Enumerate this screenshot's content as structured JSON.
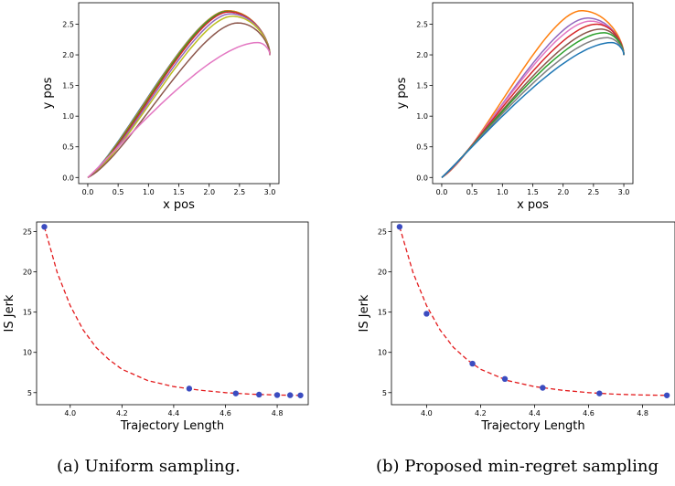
{
  "captions": {
    "a": "(a) Uniform sampling.",
    "b": "(b) Proposed min-regret sampling"
  },
  "chart_data": [
    {
      "type": "line",
      "xlabel": "x pos",
      "ylabel": "y pos",
      "xlim": [
        -0.15,
        3.15
      ],
      "ylim": [
        -0.1,
        2.85
      ],
      "xticks": [
        0.0,
        0.5,
        1.0,
        1.5,
        2.0,
        2.5,
        3.0
      ],
      "yticks": [
        0.0,
        0.5,
        1.0,
        1.5,
        2.0,
        2.5
      ],
      "x_tick_labels": [
        "0.0",
        "0.5",
        "1.0",
        "1.5",
        "2.0",
        "2.5",
        "3.0"
      ],
      "y_tick_labels": [
        "0.0",
        "0.5",
        "1.0",
        "1.5",
        "2.0",
        "2.5"
      ],
      "series": [
        {
          "color": "#1f77b4",
          "values": [
            [
              0,
              0
            ],
            [
              0.55,
              0.4
            ],
            [
              2.3,
              2.72
            ],
            [
              3.0,
              2.0
            ]
          ]
        },
        {
          "color": "#ff7f0e",
          "values": [
            [
              0,
              0
            ],
            [
              0.56,
              0.38
            ],
            [
              2.3,
              2.72
            ],
            [
              3.0,
              2.0
            ]
          ]
        },
        {
          "color": "#2ca02c",
          "values": [
            [
              0,
              0
            ],
            [
              0.57,
              0.36
            ],
            [
              2.3,
              2.71
            ],
            [
              3.0,
              2.0
            ]
          ]
        },
        {
          "color": "#d62728",
          "values": [
            [
              0,
              0
            ],
            [
              0.58,
              0.34
            ],
            [
              2.32,
              2.7
            ],
            [
              3.0,
              2.0
            ]
          ]
        },
        {
          "color": "#9467bd",
          "values": [
            [
              0,
              0
            ],
            [
              0.59,
              0.32
            ],
            [
              2.35,
              2.67
            ],
            [
              3.0,
              2.0
            ]
          ]
        },
        {
          "color": "#bcbd22",
          "values": [
            [
              0,
              0
            ],
            [
              0.6,
              0.3
            ],
            [
              2.38,
              2.63
            ],
            [
              3.0,
              2.0
            ]
          ]
        },
        {
          "color": "#8c564b",
          "values": [
            [
              0,
              0
            ],
            [
              0.62,
              0.28
            ],
            [
              2.47,
              2.52
            ],
            [
              3.0,
              2.0
            ]
          ]
        },
        {
          "color": "#e377c2",
          "values": [
            [
              0,
              0
            ],
            [
              0.5,
              0.45
            ],
            [
              2.8,
              2.2
            ],
            [
              3.0,
              2.0
            ]
          ]
        }
      ]
    },
    {
      "type": "line",
      "xlabel": "x pos",
      "ylabel": "y pos",
      "xlim": [
        -0.15,
        3.15
      ],
      "ylim": [
        -0.1,
        2.85
      ],
      "xticks": [
        0.0,
        0.5,
        1.0,
        1.5,
        2.0,
        2.5,
        3.0
      ],
      "yticks": [
        0.0,
        0.5,
        1.0,
        1.5,
        2.0,
        2.5
      ],
      "x_tick_labels": [
        "0.0",
        "0.5",
        "1.0",
        "1.5",
        "2.0",
        "2.5",
        "3.0"
      ],
      "y_tick_labels": [
        "0.0",
        "0.5",
        "1.0",
        "1.5",
        "2.0",
        "2.5"
      ],
      "series": [
        {
          "color": "#ff7f0e",
          "values": [
            [
              0,
              0
            ],
            [
              0.6,
              0.35
            ],
            [
              2.3,
              2.72
            ],
            [
              3.0,
              2.0
            ]
          ]
        },
        {
          "color": "#9467bd",
          "values": [
            [
              0,
              0
            ],
            [
              0.58,
              0.38
            ],
            [
              2.4,
              2.6
            ],
            [
              3.0,
              2.0
            ]
          ]
        },
        {
          "color": "#e377c2",
          "values": [
            [
              0,
              0
            ],
            [
              0.56,
              0.4
            ],
            [
              2.45,
              2.55
            ],
            [
              3.0,
              2.0
            ]
          ]
        },
        {
          "color": "#d62728",
          "values": [
            [
              0,
              0
            ],
            [
              0.55,
              0.42
            ],
            [
              2.55,
              2.5
            ],
            [
              3.0,
              2.0
            ]
          ]
        },
        {
          "color": "#8c564b",
          "values": [
            [
              0,
              0
            ],
            [
              0.55,
              0.44
            ],
            [
              2.62,
              2.42
            ],
            [
              3.0,
              2.0
            ]
          ]
        },
        {
          "color": "#2ca02c",
          "values": [
            [
              0,
              0
            ],
            [
              0.54,
              0.46
            ],
            [
              2.67,
              2.36
            ],
            [
              3.0,
              2.0
            ]
          ]
        },
        {
          "color": "#7f7f7f",
          "values": [
            [
              0,
              0
            ],
            [
              0.53,
              0.47
            ],
            [
              2.72,
              2.28
            ],
            [
              3.0,
              2.0
            ]
          ]
        },
        {
          "color": "#1f77b4",
          "values": [
            [
              0,
              0
            ],
            [
              0.52,
              0.48
            ],
            [
              2.8,
              2.2
            ],
            [
              3.0,
              2.0
            ]
          ]
        }
      ]
    },
    {
      "type": "scatter",
      "xlabel": "Trajectory Length",
      "ylabel": "IS Jerk",
      "xlim": [
        3.87,
        4.92
      ],
      "ylim": [
        3.5,
        26.2
      ],
      "xticks": [
        4.0,
        4.2,
        4.4,
        4.6,
        4.8
      ],
      "yticks": [
        5,
        10,
        15,
        20,
        25
      ],
      "x_tick_labels": [
        "4.0",
        "4.2",
        "4.4",
        "4.6",
        "4.8"
      ],
      "y_tick_labels": [
        "5",
        "10",
        "15",
        "20",
        "25"
      ],
      "point_color": "#3b4cc0",
      "fit_color": "#e31a1c",
      "points": [
        {
          "x": 3.9,
          "y": 25.6
        },
        {
          "x": 4.46,
          "y": 5.5
        },
        {
          "x": 4.64,
          "y": 4.9
        },
        {
          "x": 4.73,
          "y": 4.75
        },
        {
          "x": 4.8,
          "y": 4.7
        },
        {
          "x": 4.85,
          "y": 4.68
        },
        {
          "x": 4.89,
          "y": 4.66
        }
      ],
      "fit": [
        {
          "x": 3.9,
          "y": 25.6
        },
        {
          "x": 3.95,
          "y": 19.9
        },
        {
          "x": 4.0,
          "y": 15.8
        },
        {
          "x": 4.05,
          "y": 12.8
        },
        {
          "x": 4.1,
          "y": 10.6
        },
        {
          "x": 4.15,
          "y": 9.1
        },
        {
          "x": 4.2,
          "y": 7.9
        },
        {
          "x": 4.3,
          "y": 6.5
        },
        {
          "x": 4.4,
          "y": 5.75
        },
        {
          "x": 4.5,
          "y": 5.3
        },
        {
          "x": 4.6,
          "y": 5.0
        },
        {
          "x": 4.7,
          "y": 4.8
        },
        {
          "x": 4.8,
          "y": 4.7
        },
        {
          "x": 4.89,
          "y": 4.66
        }
      ]
    },
    {
      "type": "scatter",
      "xlabel": "Trajectory Length",
      "ylabel": "IS Jerk",
      "xlim": [
        3.87,
        4.92
      ],
      "ylim": [
        3.5,
        26.2
      ],
      "xticks": [
        4.0,
        4.2,
        4.4,
        4.6,
        4.8
      ],
      "yticks": [
        5,
        10,
        15,
        20,
        25
      ],
      "x_tick_labels": [
        "4.0",
        "4.2",
        "4.4",
        "4.6",
        "4.8"
      ],
      "y_tick_labels": [
        "5",
        "10",
        "15",
        "20",
        "25"
      ],
      "point_color": "#3b4cc0",
      "fit_color": "#e31a1c",
      "points": [
        {
          "x": 3.9,
          "y": 25.6
        },
        {
          "x": 4.0,
          "y": 14.8
        },
        {
          "x": 4.17,
          "y": 8.6
        },
        {
          "x": 4.29,
          "y": 6.7
        },
        {
          "x": 4.43,
          "y": 5.6
        },
        {
          "x": 4.64,
          "y": 4.9
        },
        {
          "x": 4.89,
          "y": 4.66
        }
      ],
      "fit": [
        {
          "x": 3.9,
          "y": 25.6
        },
        {
          "x": 3.95,
          "y": 19.9
        },
        {
          "x": 4.0,
          "y": 15.8
        },
        {
          "x": 4.05,
          "y": 12.8
        },
        {
          "x": 4.1,
          "y": 10.6
        },
        {
          "x": 4.15,
          "y": 9.1
        },
        {
          "x": 4.2,
          "y": 7.9
        },
        {
          "x": 4.3,
          "y": 6.5
        },
        {
          "x": 4.4,
          "y": 5.75
        },
        {
          "x": 4.5,
          "y": 5.3
        },
        {
          "x": 4.6,
          "y": 5.0
        },
        {
          "x": 4.7,
          "y": 4.8
        },
        {
          "x": 4.8,
          "y": 4.7
        },
        {
          "x": 4.89,
          "y": 4.66
        }
      ]
    }
  ]
}
